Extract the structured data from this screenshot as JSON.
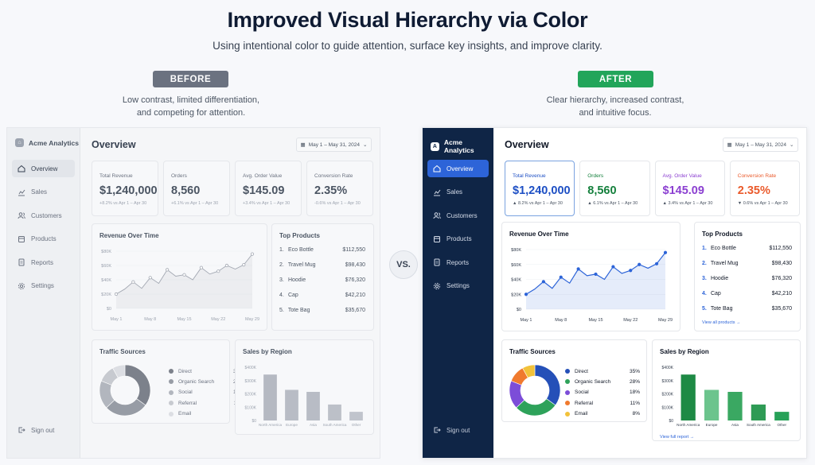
{
  "header": {
    "title": "Improved Visual Hierarchy via Color",
    "subtitle": "Using intentional color to guide attention, surface key insights, and improve clarity."
  },
  "before_badge": "BEFORE",
  "after_badge": "AFTER",
  "before_caption": [
    "Low contrast, limited differentiation,",
    "and competing for attention."
  ],
  "after_caption": [
    "Clear hierarchy, increased contrast,",
    "and intuitive focus."
  ],
  "vs_label": "VS.",
  "brand": "Acme Analytics",
  "nav": [
    {
      "label": "Overview",
      "icon": "home-icon",
      "active": true
    },
    {
      "label": "Sales",
      "icon": "chart-icon",
      "active": false
    },
    {
      "label": "Customers",
      "icon": "users-icon",
      "active": false
    },
    {
      "label": "Products",
      "icon": "box-icon",
      "active": false
    },
    {
      "label": "Reports",
      "icon": "document-icon",
      "active": false
    },
    {
      "label": "Settings",
      "icon": "gear-icon",
      "active": false
    }
  ],
  "signout_label": "Sign out",
  "page_title": "Overview",
  "date_range": "May 1 – May 31, 2024",
  "kpis": [
    {
      "label": "Total Revenue",
      "value": "$1,240,000",
      "delta": "+8.2% vs Apr 1 – Apr 30",
      "delta_after": "▲ 8.2% vs Apr 1 – Apr 30",
      "color": "#1d4fc4",
      "delta_color": "#16a34a"
    },
    {
      "label": "Orders",
      "value": "8,560",
      "delta": "+6.1% vs Apr 1 – Apr 30",
      "delta_after": "▲ 6.1% vs Apr 1 – Apr 30",
      "color": "#15803d",
      "delta_color": "#16a34a"
    },
    {
      "label": "Avg. Order Value",
      "value": "$145.09",
      "delta": "+3.4% vs Apr 1 – Apr 30",
      "delta_after": "▲ 3.4% vs Apr 1 – Apr 30",
      "color": "#8b3fd1",
      "delta_color": "#16a34a"
    },
    {
      "label": "Conversion Rate",
      "value": "2.35%",
      "delta": "-0.6% vs Apr 1 – Apr 30",
      "delta_after": "▼ 0.6% vs Apr 1 – Apr 30",
      "color": "#ea5a2b",
      "delta_color": "#dc2626"
    }
  ],
  "revenue_title": "Revenue Over Time",
  "top_products_title": "Top Products",
  "top_products": [
    {
      "rank": "1.",
      "name": "Eco Bottle",
      "value": "$112,550"
    },
    {
      "rank": "2.",
      "name": "Travel Mug",
      "value": "$98,430"
    },
    {
      "rank": "3.",
      "name": "Hoodie",
      "value": "$76,320"
    },
    {
      "rank": "4.",
      "name": "Cap",
      "value": "$42,210"
    },
    {
      "rank": "5.",
      "name": "Tote Bag",
      "value": "$35,670"
    }
  ],
  "view_all_products": "View all products →",
  "traffic_title": "Traffic Sources",
  "region_title": "Sales by Region",
  "view_full_report": "View full report →",
  "colors": {
    "accent_blue": "#2d64d8",
    "sidebar_dark": "#0f2546",
    "after_badge": "#22a55a",
    "before_badge": "#6b7280"
  },
  "chart_data": [
    {
      "type": "line",
      "title": "Revenue Over Time",
      "x": [
        "May 1",
        "May 4",
        "May 6",
        "May 8",
        "May 10",
        "May 12",
        "May 14",
        "May 15",
        "May 16",
        "May 18",
        "May 20",
        "May 22",
        "May 23",
        "May 25",
        "May 27",
        "May 29",
        "May 31"
      ],
      "x_tick_labels": [
        "May 1",
        "May 8",
        "May 15",
        "May 22",
        "May 29"
      ],
      "values": [
        20,
        27,
        37,
        28,
        43,
        35,
        54,
        45,
        47,
        40,
        57,
        48,
        52,
        60,
        55,
        61,
        76
      ],
      "y_tick_labels": [
        "$0",
        "$20K",
        "$40K",
        "$60K",
        "$80K"
      ],
      "ylim": [
        0,
        80
      ]
    },
    {
      "type": "pie",
      "title": "Traffic Sources",
      "labels": [
        "Direct",
        "Organic Search",
        "Social",
        "Referral",
        "Email"
      ],
      "values": [
        35,
        28,
        18,
        11,
        8
      ],
      "value_labels": [
        "35%",
        "28%",
        "18%",
        "11%",
        "8%"
      ],
      "colors_after": [
        "#2550b8",
        "#2ea25a",
        "#7c4dd8",
        "#f07a2e",
        "#f2c23a"
      ],
      "colors_before": [
        "#7c818b",
        "#979ca5",
        "#b2b6be",
        "#c7cad0",
        "#dcdee3"
      ]
    },
    {
      "type": "bar",
      "title": "Sales by Region",
      "categories": [
        "North America",
        "Europe",
        "Asia",
        "South America",
        "Other"
      ],
      "values": [
        345,
        230,
        215,
        120,
        65
      ],
      "y_tick_labels": [
        "$0",
        "$100K",
        "$200K",
        "$300K",
        "$400K"
      ],
      "ylim": [
        0,
        400
      ],
      "colors_after": [
        "#1e8a45",
        "#6cc48d",
        "#3aa862",
        "#2e9b55",
        "#27a158"
      ],
      "colors_before": [
        "#b5b9c2",
        "#b8bcc5",
        "#b8bcc5",
        "#bcc0c8",
        "#c0c4cc"
      ]
    }
  ]
}
